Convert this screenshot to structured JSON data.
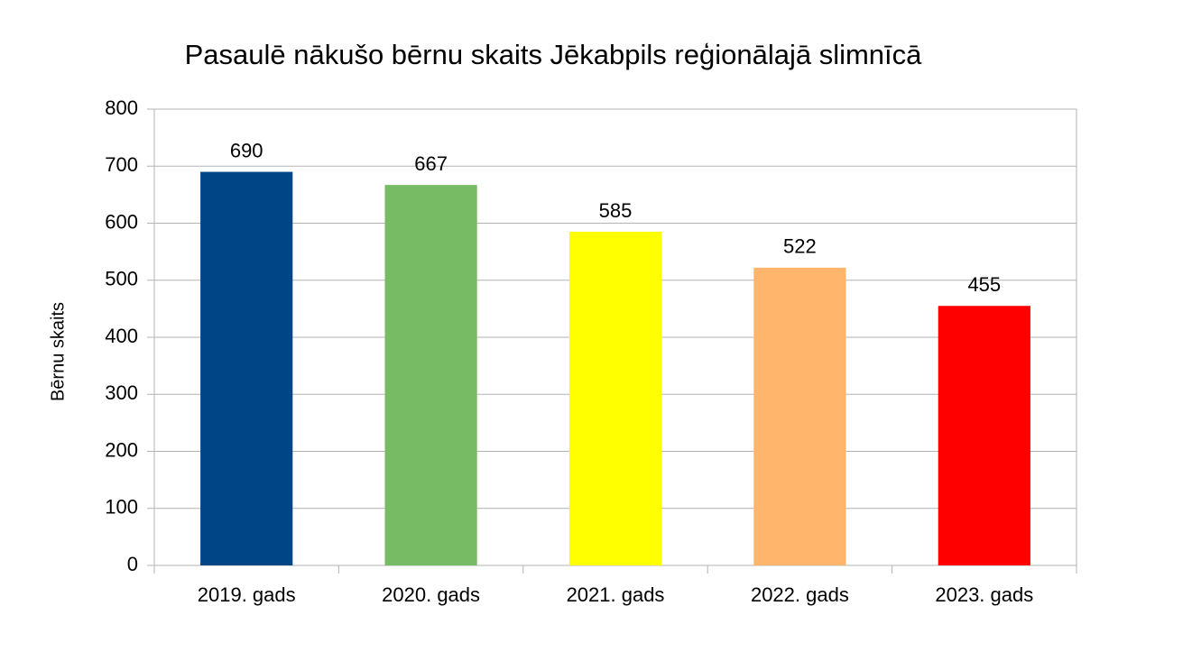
{
  "chart_data": {
    "type": "bar",
    "title": "Pasaulē nākušo bērnu skaits Jēkabpils reģionālajā slimnīcā",
    "y_label": "Bērnu skaits",
    "categories": [
      "2019. gads",
      "2020. gads",
      "2021. gads",
      "2022. gads",
      "2023. gads"
    ],
    "values": [
      690,
      667,
      585,
      522,
      455
    ],
    "colors": [
      "#004586",
      "#77bc65",
      "#ffff00",
      "#ffb66c",
      "#ff0000"
    ],
    "ylim": [
      0,
      800
    ],
    "yticks": [
      0,
      100,
      200,
      300,
      400,
      500,
      600,
      700,
      800
    ],
    "grid": true
  }
}
